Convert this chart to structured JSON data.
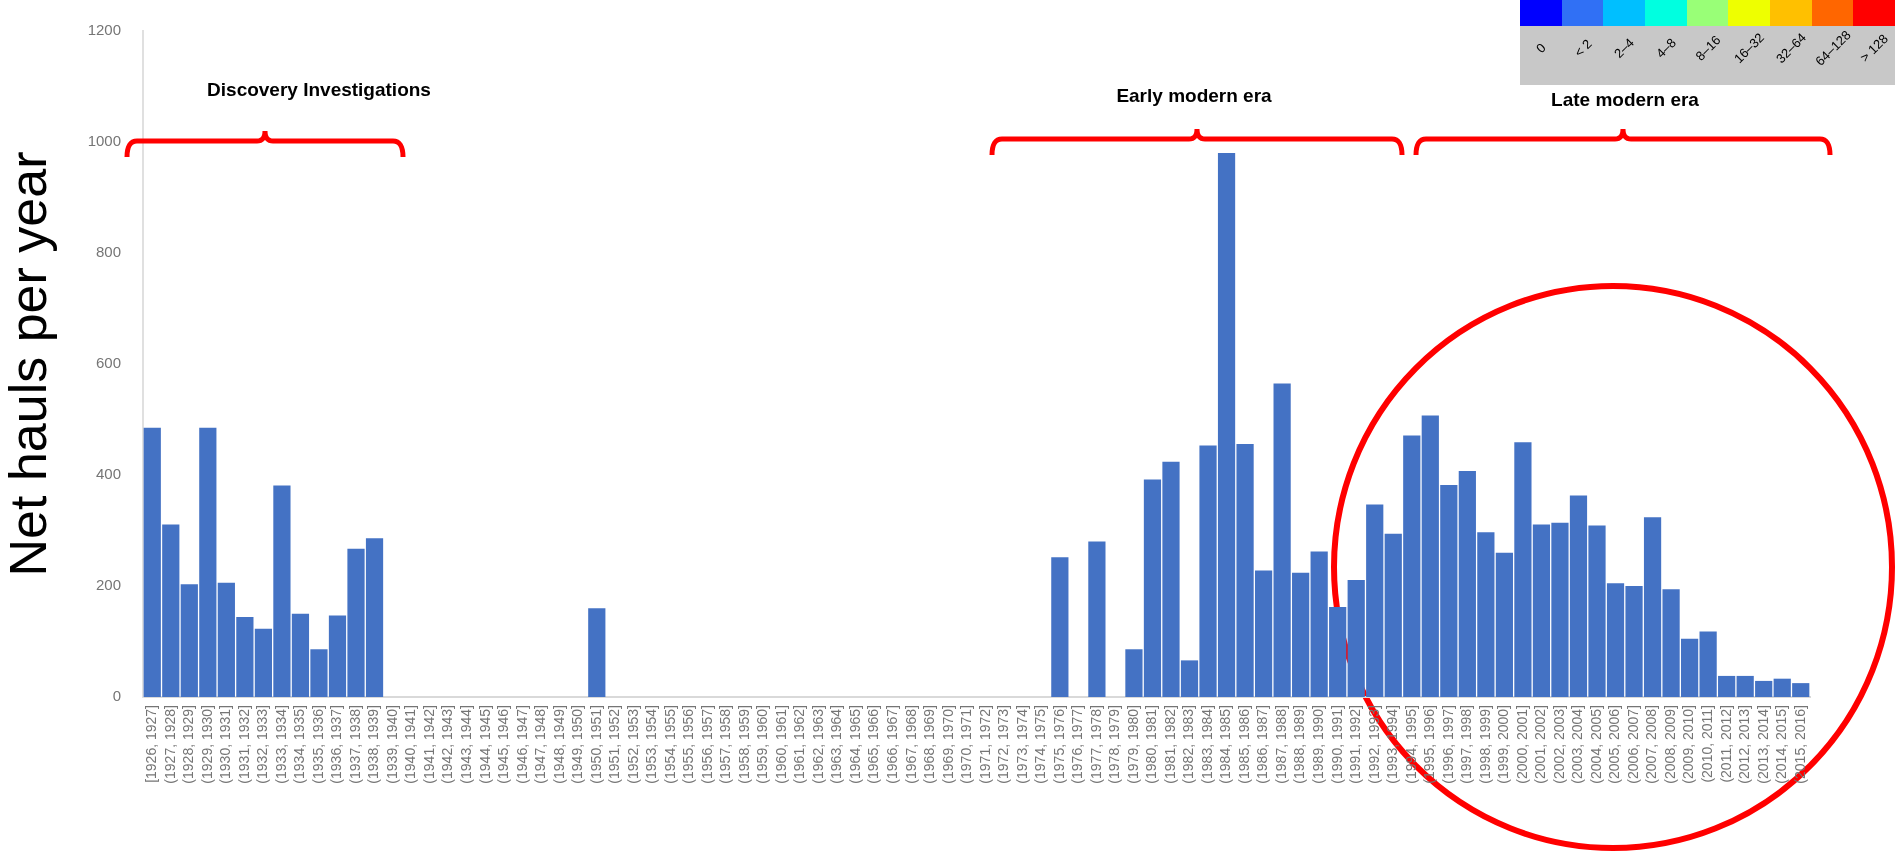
{
  "chart_data": {
    "type": "bar",
    "ylabel": "Net hauls per year",
    "categories": [
      "[1926, 1927]",
      "(1927, 1928]",
      "(1928, 1929]",
      "(1929, 1930]",
      "(1930, 1931]",
      "(1931, 1932]",
      "(1932, 1933]",
      "(1933, 1934]",
      "(1934, 1935]",
      "(1935, 1936]",
      "(1936, 1937]",
      "(1937, 1938]",
      "(1938, 1939]",
      "(1939, 1940]",
      "(1940, 1941]",
      "(1941, 1942]",
      "(1942, 1943]",
      "(1943, 1944]",
      "(1944, 1945]",
      "(1945, 1946]",
      "(1946, 1947]",
      "(1947, 1948]",
      "(1948, 1949]",
      "(1949, 1950]",
      "(1950, 1951]",
      "(1951, 1952]",
      "(1952, 1953]",
      "(1953, 1954]",
      "(1954, 1955]",
      "(1955, 1956]",
      "(1956, 1957]",
      "(1957, 1958]",
      "(1958, 1959]",
      "(1959, 1960]",
      "(1960, 1961]",
      "(1961, 1962]",
      "(1962, 1963]",
      "(1963, 1964]",
      "(1964, 1965]",
      "(1965, 1966]",
      "(1966, 1967]",
      "(1967, 1968]",
      "(1968, 1969]",
      "(1969, 1970]",
      "(1970, 1971]",
      "(1971, 1972]",
      "(1972, 1973]",
      "(1973, 1974]",
      "(1974, 1975]",
      "(1975, 1976]",
      "(1976, 1977]",
      "(1977, 1978]",
      "(1978, 1979]",
      "(1979, 1980]",
      "(1980, 1981]",
      "(1981, 1982]",
      "(1982, 1983]",
      "(1983, 1984]",
      "(1984, 1985]",
      "(1985, 1986]",
      "(1986, 1987]",
      "(1987, 1988]",
      "(1988, 1989]",
      "(1989, 1990]",
      "(1990, 1991]",
      "(1991, 1992]",
      "(1992, 1993]",
      "(1993, 1994]",
      "(1994, 1995]",
      "(1995, 1996]",
      "(1996, 1997]",
      "(1997, 1998]",
      "(1998, 1999]",
      "(1999, 2000]",
      "(2000, 2001]",
      "(2001, 2002]",
      "(2002, 2003]",
      "(2003, 2004]",
      "(2004, 2005]",
      "(2005, 2006]",
      "(2006, 2007]",
      "(2007, 2008]",
      "(2008, 2009]",
      "(2009, 2010]",
      "(2010, 2011]",
      "(2011, 2012]",
      "(2012, 2013]",
      "(2013, 2014]",
      "(2014, 2015]",
      "(2015, 2016]"
    ],
    "values": [
      485,
      311,
      203,
      485,
      206,
      144,
      123,
      381,
      150,
      86,
      147,
      267,
      286,
      0,
      0,
      0,
      0,
      0,
      0,
      0,
      0,
      0,
      0,
      0,
      160,
      0,
      0,
      0,
      0,
      0,
      0,
      0,
      0,
      0,
      0,
      0,
      0,
      0,
      0,
      0,
      0,
      0,
      0,
      0,
      0,
      0,
      0,
      0,
      0,
      252,
      0,
      280,
      0,
      86,
      392,
      424,
      66,
      453,
      980,
      456,
      228,
      565,
      224,
      262,
      162,
      211,
      347,
      294,
      471,
      507,
      382,
      407,
      297,
      260,
      459,
      311,
      314,
      363,
      309,
      205,
      200,
      324,
      194,
      105,
      118,
      38,
      38,
      29,
      33,
      25
    ],
    "color": "#4472c4",
    "ylim": [
      0,
      1200
    ],
    "yticks": [
      0,
      200,
      400,
      600,
      800,
      1000,
      1200
    ],
    "grid": false,
    "legend": false,
    "annotations": [
      "Discovery Investigations",
      "Early modern era",
      "Late modern era",
      "0",
      "< 2",
      "2–4",
      "4–8",
      "8–16",
      "16–32",
      "32–64",
      "64–128",
      "> 128"
    ]
  }
}
